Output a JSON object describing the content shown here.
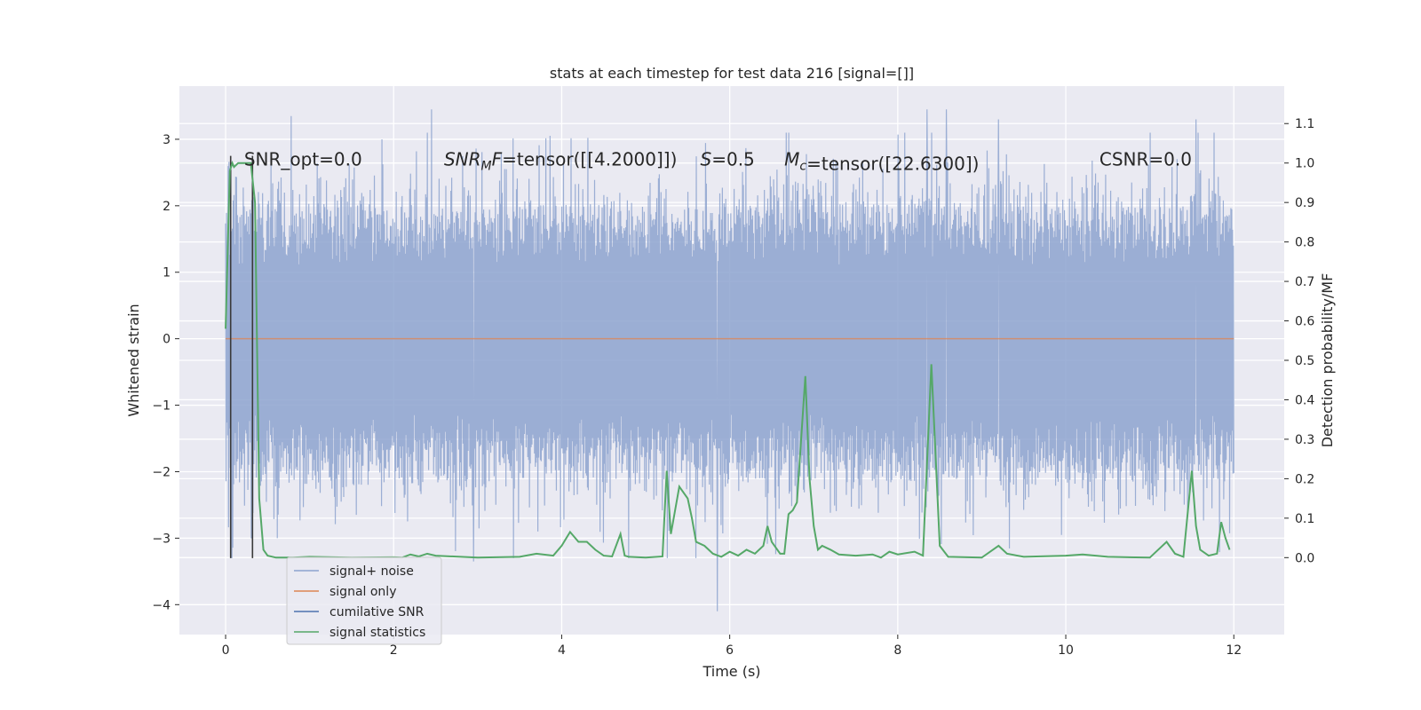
{
  "chart_data": {
    "type": "line",
    "title": "stats at each timestep for test data 216 [signal=[]]",
    "xlabel": "Time (s)",
    "ylabel": "Whitened strain",
    "y2label": "Detection probability/MF",
    "xlim": [
      -0.55,
      12.6
    ],
    "ylim": [
      -4.45,
      3.8
    ],
    "y2lim": [
      -0.195,
      1.195
    ],
    "xticks": [
      0,
      2,
      4,
      6,
      8,
      10,
      12
    ],
    "yticks": [
      -4,
      -3,
      -2,
      -1,
      0,
      1,
      2,
      3
    ],
    "y2ticks": [
      0.0,
      0.1,
      0.2,
      0.3,
      0.4,
      0.5,
      0.6,
      0.7,
      0.8,
      0.9,
      1.0,
      1.1
    ],
    "grid": true,
    "legend_position": "lower-left",
    "annotations": [
      {
        "text": "SNR_opt=0.0",
        "x": 0.22
      },
      {
        "text": "SNR_MF=tensor([[4.2000]])",
        "x": 2.6
      },
      {
        "text": "S=0.5",
        "x": 5.65
      },
      {
        "text": "M_c=tensor([22.6300])",
        "x": 6.65
      },
      {
        "text": "CSNR=0.0",
        "x": 10.4
      }
    ],
    "annotation_y": 2.7,
    "vertical_markers": [
      0.06,
      0.32
    ],
    "series": [
      {
        "name": "signal+ noise",
        "color": "#8da3cf",
        "t_range": [
          0,
          12
        ],
        "envelope_typical_max": 1.45,
        "envelope_typical_min": -1.5,
        "notable_peaks": [
          {
            "t": 0.78,
            "v": 3.35
          },
          {
            "t": 2.45,
            "v": 3.45
          },
          {
            "t": 5.85,
            "v": -4.1
          },
          {
            "t": 8.35,
            "v": 3.45
          },
          {
            "t": 8.58,
            "v": 3.45
          },
          {
            "t": 9.2,
            "v": 3.3
          },
          {
            "t": 11.55,
            "v": 3.3
          },
          {
            "t": 2.95,
            "v": -3.35
          }
        ]
      },
      {
        "name": "signal only",
        "color": "#dd8452",
        "x": [
          0,
          12
        ],
        "values": [
          0,
          0
        ]
      },
      {
        "name": "cumilative SNR",
        "color": "#4c72b0",
        "x": [],
        "values": []
      },
      {
        "name": "signal statistics",
        "color": "#55a868",
        "axis": "right",
        "x": [
          0,
          0.05,
          0.08,
          0.1,
          0.15,
          0.2,
          0.3,
          0.35,
          0.4,
          0.45,
          0.5,
          0.6,
          0.8,
          1.0,
          1.5,
          2.0,
          2.1,
          2.2,
          2.3,
          2.4,
          2.5,
          3.0,
          3.5,
          3.7,
          3.9,
          4.0,
          4.1,
          4.2,
          4.3,
          4.4,
          4.5,
          4.6,
          4.7,
          4.75,
          4.8,
          5.0,
          5.2,
          5.25,
          5.3,
          5.4,
          5.5,
          5.55,
          5.6,
          5.7,
          5.8,
          5.9,
          6.0,
          6.1,
          6.2,
          6.3,
          6.4,
          6.45,
          6.5,
          6.6,
          6.65,
          6.7,
          6.75,
          6.8,
          6.9,
          6.95,
          7.0,
          7.05,
          7.1,
          7.2,
          7.3,
          7.5,
          7.7,
          7.8,
          7.9,
          8.0,
          8.2,
          8.3,
          8.4,
          8.5,
          8.6,
          9.0,
          9.2,
          9.3,
          9.5,
          10.0,
          10.2,
          10.5,
          11.0,
          11.2,
          11.3,
          11.4,
          11.5,
          11.55,
          11.6,
          11.7,
          11.8,
          11.85,
          11.9,
          11.95
        ],
        "values": [
          0.58,
          0.98,
          1.0,
          0.99,
          1.0,
          1.0,
          1.0,
          0.9,
          0.15,
          0.02,
          0.005,
          0.0,
          0.0,
          0.002,
          0.0,
          0.001,
          0.0,
          0.008,
          0.003,
          0.01,
          0.005,
          0.0,
          0.002,
          0.01,
          0.005,
          0.03,
          0.065,
          0.04,
          0.04,
          0.02,
          0.005,
          0.003,
          0.06,
          0.005,
          0.002,
          0.0,
          0.003,
          0.22,
          0.06,
          0.18,
          0.15,
          0.1,
          0.04,
          0.03,
          0.01,
          0.002,
          0.015,
          0.005,
          0.02,
          0.01,
          0.03,
          0.08,
          0.04,
          0.01,
          0.01,
          0.11,
          0.12,
          0.14,
          0.46,
          0.2,
          0.08,
          0.02,
          0.03,
          0.02,
          0.008,
          0.005,
          0.008,
          0.0,
          0.015,
          0.008,
          0.015,
          0.005,
          0.49,
          0.03,
          0.002,
          0.0,
          0.03,
          0.01,
          0.002,
          0.005,
          0.008,
          0.002,
          0.0,
          0.04,
          0.01,
          0.002,
          0.22,
          0.08,
          0.02,
          0.005,
          0.01,
          0.09,
          0.05,
          0.02
        ]
      }
    ]
  }
}
